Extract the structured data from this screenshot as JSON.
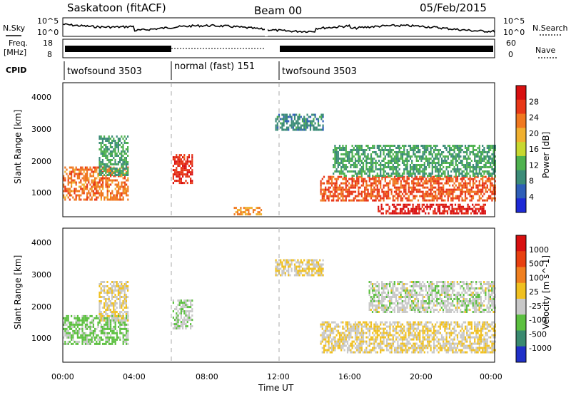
{
  "header": {
    "station": "Saskatoon (fitACF)",
    "beam": "Beam 00",
    "date": "05/Feb/2015"
  },
  "top_panels": {
    "nsky_label": "N.Sky",
    "nsky_ticks": [
      "10^5",
      "10^0"
    ],
    "nsearch_label": "N.Search",
    "nsearch_ticks": [
      "10^5",
      "10^0"
    ],
    "freq_label_1": "Freq.",
    "freq_label_2": "[MHz]",
    "freq_ticks": [
      "18",
      "8"
    ],
    "nave_label": "Nave",
    "nave_ticks": [
      "60",
      "0"
    ],
    "cpid_label": "CPID",
    "cpid_segments": [
      {
        "label": "twofsound 3503",
        "start_h": 0,
        "end_h": 6
      },
      {
        "label": "normal (fast) 151",
        "start_h": 6,
        "end_h": 11.5
      },
      {
        "label": "twofsound 3503",
        "start_h": 11.5,
        "end_h": 24
      }
    ]
  },
  "axes": {
    "xlabel": "Time UT",
    "x_ticks": [
      "00:00",
      "04:00",
      "08:00",
      "12:00",
      "16:00",
      "20:00",
      "00:00"
    ],
    "ylabel": "Slant Range [km]",
    "y_ticks": [
      "1000",
      "2000",
      "3000",
      "4000"
    ]
  },
  "power_colorbar": {
    "label": "Power [dB]",
    "ticks": [
      "4",
      "8",
      "12",
      "16",
      "20",
      "24",
      "28"
    ],
    "colors": [
      "#1e2ad6",
      "#2f5fb8",
      "#3c8c78",
      "#4fb24f",
      "#c8d830",
      "#f0b030",
      "#f07820",
      "#e83818",
      "#d81010"
    ]
  },
  "velocity_colorbar": {
    "label": "Velocity [m s^-1]",
    "ticks": [
      "1000",
      "500",
      "100",
      "25",
      "-25",
      "-100",
      "-500",
      "-1000"
    ],
    "colors": [
      "#2030c8",
      "#3a8a70",
      "#5cc040",
      "#c8c8c8",
      "#f0c020",
      "#f08020",
      "#e84010",
      "#d81010"
    ]
  },
  "chart_data": {
    "type": "heatmap",
    "x_range_hours": [
      0,
      24
    ],
    "y_range_km": [
      180,
      4500
    ],
    "panels": [
      {
        "name": "Power",
        "unit": "dB",
        "scale": [
          0,
          30
        ],
        "regions": [
          {
            "t0": 0.0,
            "t1": 3.6,
            "r0": 700,
            "r1": 1800,
            "value": 22
          },
          {
            "t0": 2.0,
            "t1": 3.6,
            "r0": 1500,
            "r1": 2800,
            "value": 10
          },
          {
            "t0": 6.1,
            "t1": 7.2,
            "r0": 1300,
            "r1": 2200,
            "value": 26
          },
          {
            "t0": 9.5,
            "t1": 11.0,
            "r0": 250,
            "r1": 500,
            "value": 20
          },
          {
            "t0": 11.8,
            "t1": 14.5,
            "r0": 3000,
            "r1": 3500,
            "value": 8
          },
          {
            "t0": 14.3,
            "t1": 24.0,
            "r0": 700,
            "r1": 1500,
            "value": 24
          },
          {
            "t0": 17.5,
            "t1": 23.5,
            "r0": 300,
            "r1": 600,
            "value": 28
          },
          {
            "t0": 15.0,
            "t1": 24.0,
            "r0": 1500,
            "r1": 2500,
            "value": 10
          }
        ]
      },
      {
        "name": "Velocity",
        "unit": "m s^-1",
        "scale": [
          -1000,
          1000
        ],
        "regions": [
          {
            "t0": 0.0,
            "t1": 3.6,
            "r0": 800,
            "r1": 1700,
            "value": -300
          },
          {
            "t0": 2.0,
            "t1": 3.6,
            "r0": 1500,
            "r1": 2800,
            "value": 0
          },
          {
            "t0": 6.1,
            "t1": 7.2,
            "r0": 1300,
            "r1": 2200,
            "value": -200
          },
          {
            "t0": 11.8,
            "t1": 14.5,
            "r0": 3000,
            "r1": 3500,
            "value": 0
          },
          {
            "t0": 14.3,
            "t1": 24.0,
            "r0": 500,
            "r1": 1500,
            "value": 0
          },
          {
            "t0": 17.0,
            "t1": 24.0,
            "r0": 1800,
            "r1": 2800,
            "value": -150
          }
        ]
      }
    ]
  }
}
